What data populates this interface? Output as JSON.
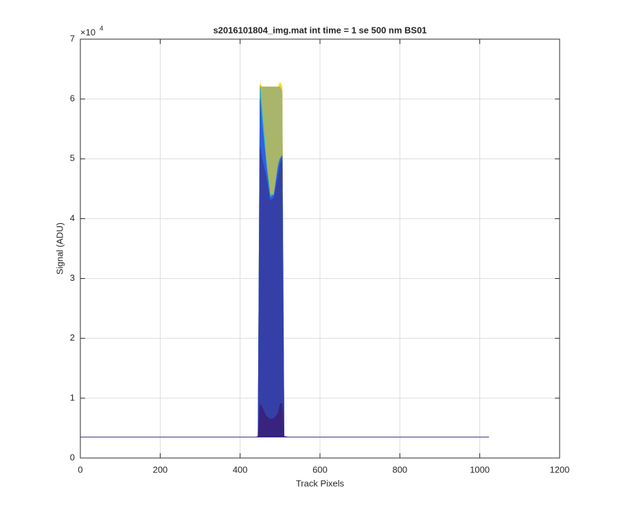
{
  "chart_data": {
    "type": "area",
    "title": "s2016101804_img.mat int time = 1 se  500 nm BS01",
    "x_label": "Track Pixels",
    "y_label": "Signal (ADU)",
    "y_multiplier_base": "×10",
    "y_multiplier_exponent": "4",
    "x": [
      0,
      440,
      445,
      450,
      455,
      465,
      475,
      485,
      495,
      500,
      505,
      510,
      520,
      1023
    ],
    "series": [
      {
        "color": "#f9e026",
        "values": [
          3500,
          3500,
          3600,
          62600,
          62000,
          62000,
          62000,
          62000,
          62000,
          62800,
          62200,
          3600,
          3500,
          3500
        ]
      },
      {
        "color": "#eaa93a",
        "values": [
          3500,
          3500,
          3600,
          62200,
          62000,
          62000,
          62000,
          62000,
          62000,
          62000,
          61500,
          3600,
          3500,
          3500
        ]
      },
      {
        "color": "#a8b56a",
        "values": [
          3500,
          3500,
          3600,
          61800,
          62000,
          62000,
          62000,
          62000,
          62000,
          62000,
          61000,
          3600,
          3500,
          3500
        ]
      },
      {
        "color": "#27b5c4",
        "values": [
          3500,
          3500,
          3600,
          62000,
          58000,
          50000,
          44000,
          44000,
          49000,
          50000,
          50500,
          3600,
          3500,
          3500
        ]
      },
      {
        "color": "#2f5fe0",
        "values": [
          3500,
          3500,
          3600,
          60000,
          56000,
          49000,
          43500,
          44000,
          48500,
          50000,
          50500,
          3600,
          3500,
          3500
        ]
      },
      {
        "color": "#3440a8",
        "values": [
          3500,
          3500,
          3600,
          52000,
          50000,
          47000,
          43000,
          43500,
          47000,
          49000,
          50000,
          3600,
          3500,
          3500
        ]
      },
      {
        "color": "#38237e",
        "values": [
          3500,
          3500,
          3600,
          9000,
          8500,
          7000,
          6500,
          6600,
          7500,
          9000,
          9200,
          3600,
          3500,
          3500
        ]
      }
    ],
    "xlim": [
      0,
      1200
    ],
    "xticks": [
      0,
      200,
      400,
      600,
      800,
      1000,
      1200
    ],
    "ylim": [
      0,
      70000
    ],
    "yticks": [
      {
        "value": 0,
        "label": "0"
      },
      {
        "value": 10000,
        "label": "1"
      },
      {
        "value": 20000,
        "label": "2"
      },
      {
        "value": 30000,
        "label": "3"
      },
      {
        "value": 40000,
        "label": "4"
      },
      {
        "value": 50000,
        "label": "5"
      },
      {
        "value": 60000,
        "label": "6"
      },
      {
        "value": 70000,
        "label": "7"
      }
    ],
    "grid": true
  }
}
